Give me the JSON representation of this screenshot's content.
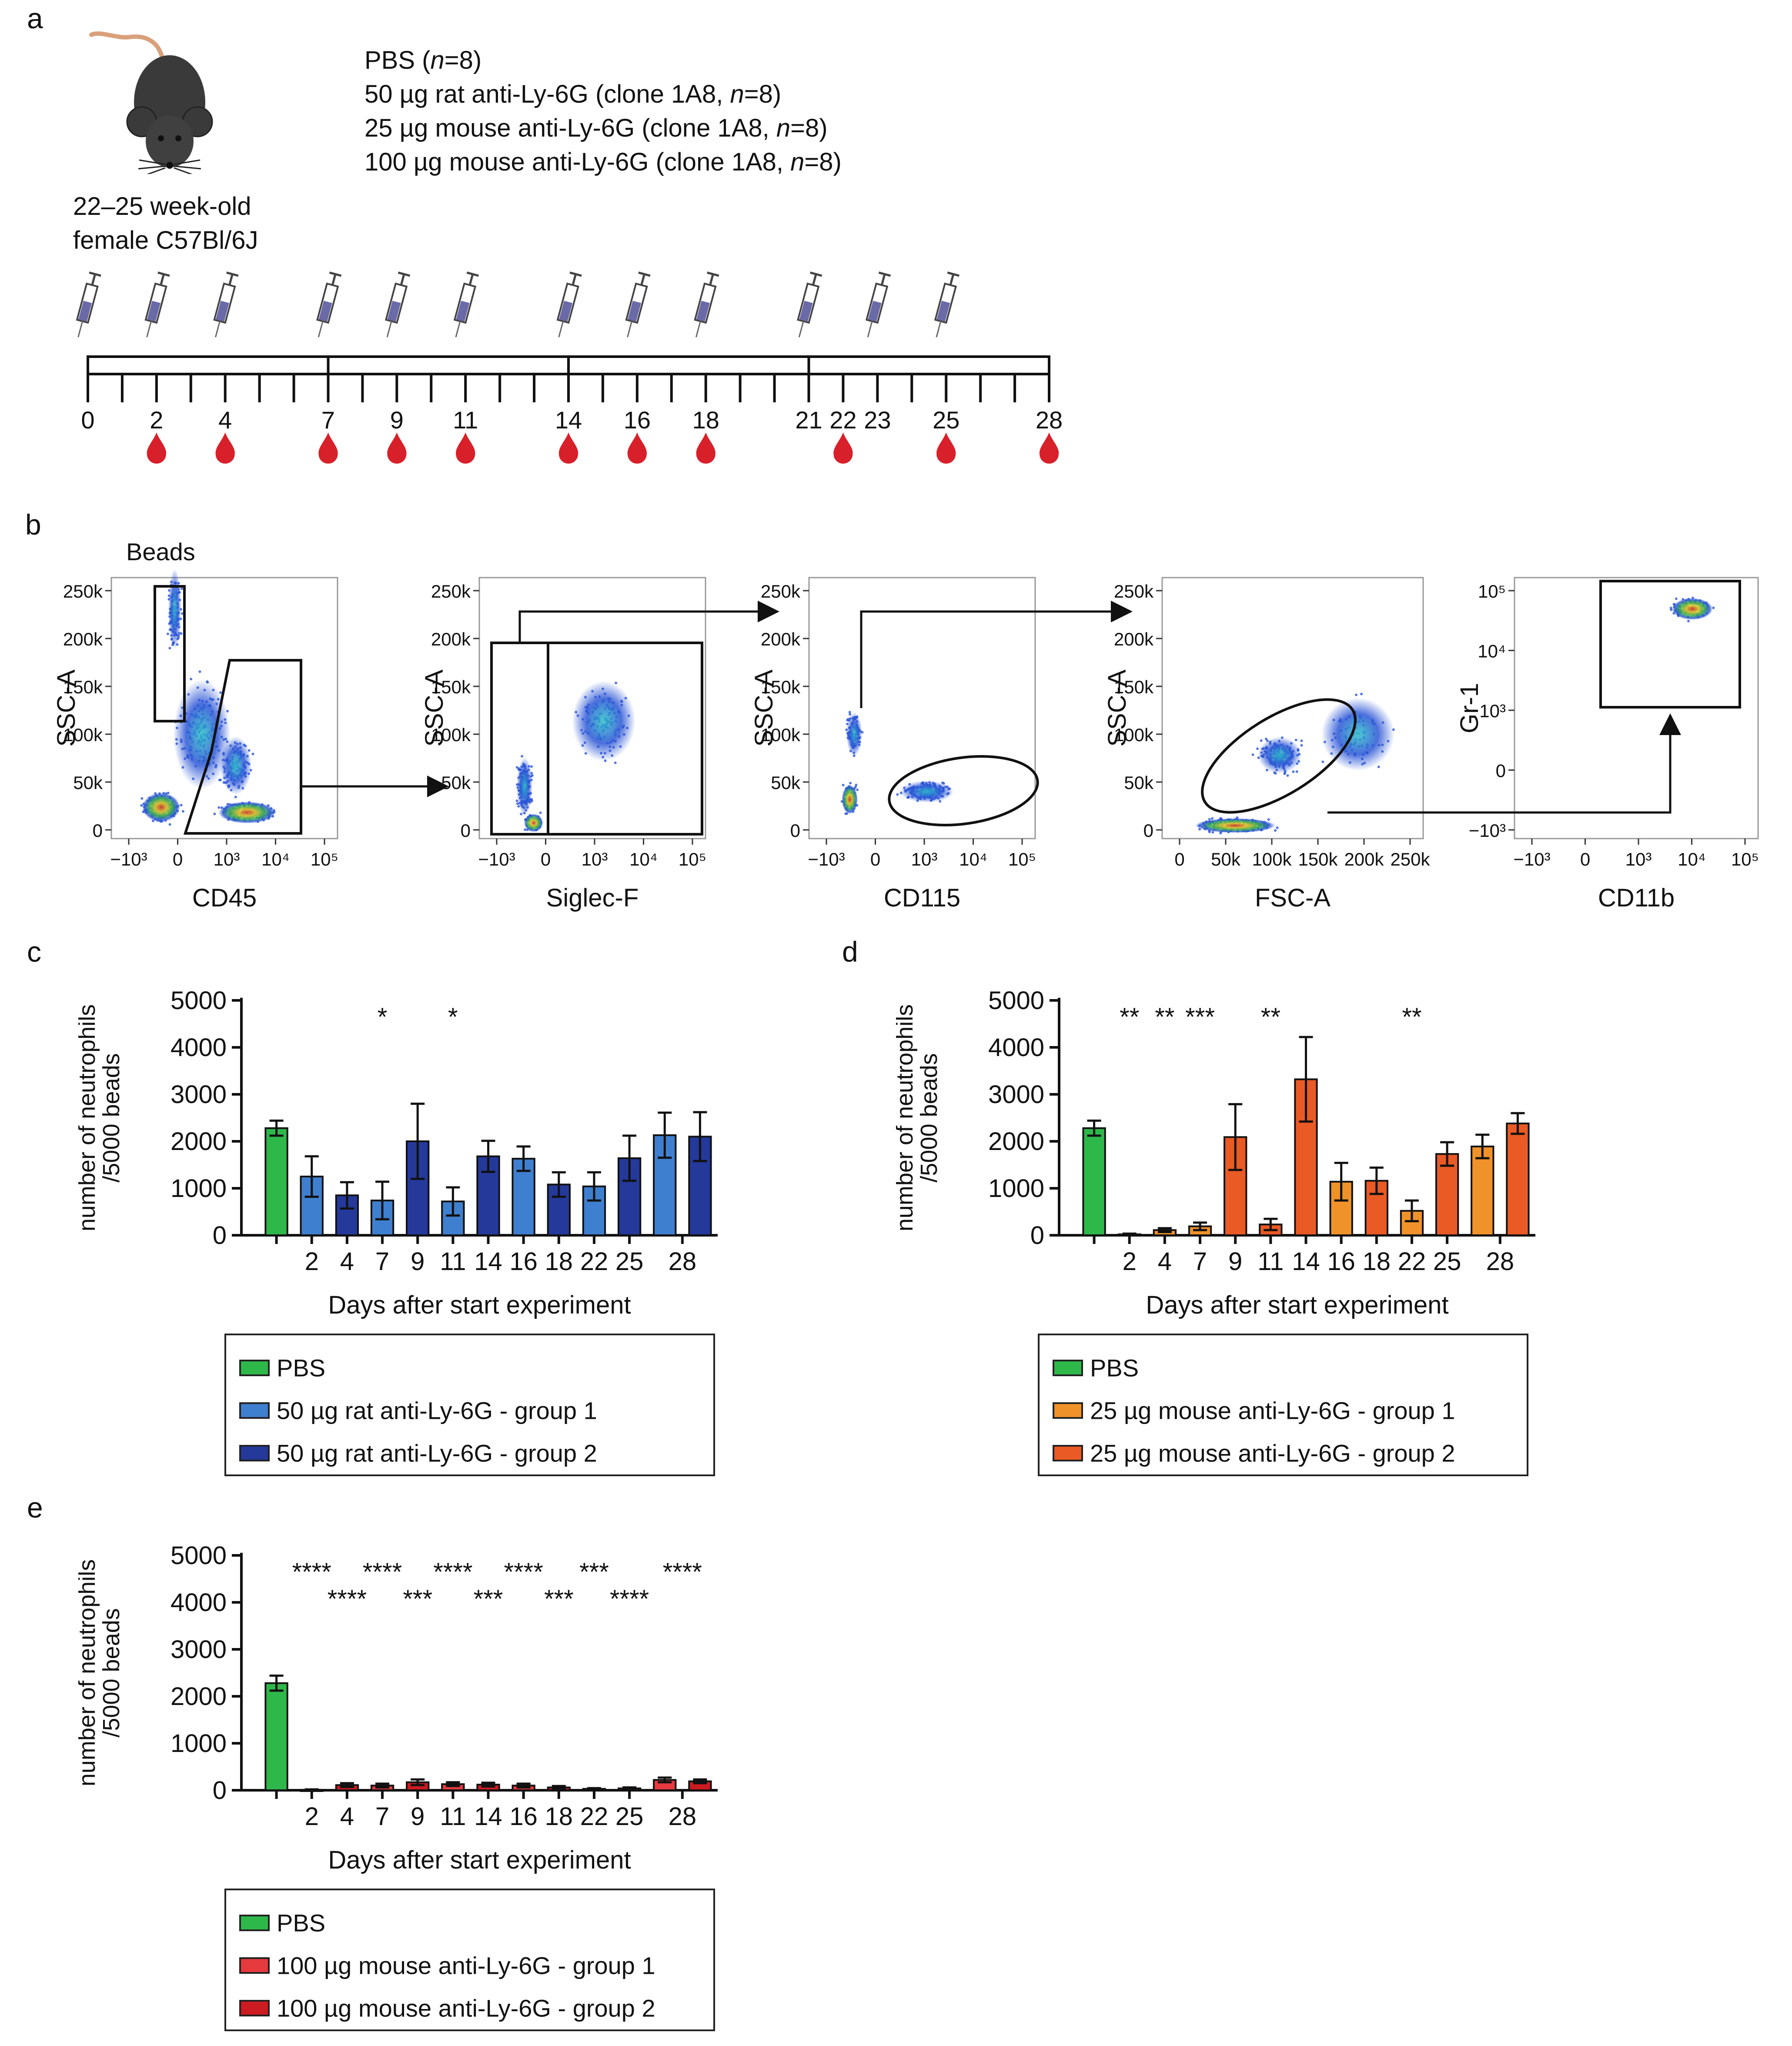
{
  "panel_a": {
    "letter": "a",
    "groups": [
      [
        "PBS (",
        "n",
        "=8)"
      ],
      [
        "50 µg rat anti-Ly-6G (clone 1A8, ",
        "n",
        "=8)"
      ],
      [
        "25 µg mouse anti-Ly-6G (clone 1A8, ",
        "n",
        "=8)"
      ],
      [
        "100 µg mouse anti-Ly-6G (clone 1A8, ",
        "n",
        "=8)"
      ]
    ],
    "mouse_label": [
      "22–25 week-old",
      "female C57Bl/6J"
    ],
    "timeline": {
      "range": [
        0,
        28
      ],
      "day_labels": [
        0,
        2,
        4,
        7,
        9,
        11,
        14,
        16,
        18,
        21,
        22,
        23,
        25,
        28
      ],
      "injection_days": [
        0,
        2,
        4,
        7,
        9,
        11,
        14,
        16,
        18,
        21,
        23,
        25
      ],
      "blood_days": [
        2,
        4,
        7,
        9,
        11,
        14,
        16,
        18,
        22,
        25,
        28
      ],
      "syringe_color": "#6a6aa8",
      "drop_color": "#d8202a"
    }
  },
  "panel_b": {
    "letter": "b",
    "beads_label": "Beads",
    "plots": [
      {
        "x_label": "CD45",
        "y_label": "SSC-A",
        "y_ticks": [
          "250k",
          "200k",
          "150k",
          "100k",
          "50k",
          "0"
        ],
        "x_ticks": [
          "−10³",
          "0",
          "10³",
          "10⁴",
          "10⁵"
        ]
      },
      {
        "x_label": "Siglec-F",
        "y_label": "SSC-A",
        "y_ticks": [
          "250k",
          "200k",
          "150k",
          "100k",
          "50k",
          "0"
        ],
        "x_ticks": [
          "−10³",
          "0",
          "10³",
          "10⁴",
          "10⁵"
        ]
      },
      {
        "x_label": "CD115",
        "y_label": "SSC-A",
        "y_ticks": [
          "250k",
          "200k",
          "150k",
          "100k",
          "50k",
          "0"
        ],
        "x_ticks": [
          "−10³",
          "0",
          "10³",
          "10⁴",
          "10⁵"
        ]
      },
      {
        "x_label": "FSC-A",
        "y_label": "SSC-A",
        "y_ticks": [
          "250k",
          "200k",
          "150k",
          "100k",
          "50k",
          "0"
        ],
        "x_ticks": [
          "0",
          "50k",
          "100k",
          "150k",
          "200k",
          "250k"
        ]
      },
      {
        "x_label": "CD11b",
        "y_label": "Gr-1",
        "y_ticks": [
          "10⁵",
          "10⁴",
          "10³",
          "0",
          "−10³"
        ],
        "x_ticks": [
          "−10³",
          "0",
          "10³",
          "10⁴",
          "10⁵"
        ]
      }
    ]
  },
  "chart_data": [
    {
      "panel": "c",
      "type": "bar",
      "ylabel": [
        "number of neutrophils",
        "/5000 beads"
      ],
      "xlabel": "Days after start experiment",
      "ylim": [
        0,
        5000
      ],
      "yticks": [
        0,
        1000,
        2000,
        3000,
        4000,
        5000
      ],
      "categories": [
        "2",
        "4",
        "7",
        "9",
        "11",
        "14",
        "16",
        "18",
        "22",
        "25",
        "28"
      ],
      "pbs": {
        "value": 2280,
        "error": 160
      },
      "series": [
        {
          "name": "PBS",
          "color": "#2fb84a"
        },
        {
          "name": "50 µg rat anti-Ly-6G - group 1",
          "color": "#3f7fcf"
        },
        {
          "name": "50 µg rat anti-Ly-6G - group 2",
          "color": "#24399a"
        }
      ],
      "bars": [
        {
          "cat": "2",
          "group": 1,
          "value": 1250,
          "error": 430
        },
        {
          "cat": "4",
          "group": 2,
          "value": 850,
          "error": 280
        },
        {
          "cat": "7",
          "group": 1,
          "value": 740,
          "error": 400
        },
        {
          "cat": "9",
          "group": 2,
          "value": 2000,
          "error": 800
        },
        {
          "cat": "11",
          "group": 1,
          "value": 720,
          "error": 300
        },
        {
          "cat": "14",
          "group": 2,
          "value": 1680,
          "error": 330
        },
        {
          "cat": "16",
          "group": 1,
          "value": 1630,
          "error": 260
        },
        {
          "cat": "18",
          "group": 2,
          "value": 1080,
          "error": 260
        },
        {
          "cat": "22",
          "group": 1,
          "value": 1040,
          "error": 300
        },
        {
          "cat": "25",
          "group": 2,
          "value": 1640,
          "error": 480
        },
        {
          "cat": "28a",
          "group": 1,
          "value": 2130,
          "error": 480
        },
        {
          "cat": "28b",
          "group": 2,
          "value": 2100,
          "error": 520
        }
      ],
      "significance": [
        {
          "cat": "7",
          "label": "*",
          "row": 0
        },
        {
          "cat": "11",
          "label": "*",
          "row": 0
        }
      ]
    },
    {
      "panel": "d",
      "type": "bar",
      "ylabel": [
        "number of neutrophils",
        "/5000 beads"
      ],
      "xlabel": "Days after start experiment",
      "ylim": [
        0,
        5000
      ],
      "yticks": [
        0,
        1000,
        2000,
        3000,
        4000,
        5000
      ],
      "categories": [
        "2",
        "4",
        "7",
        "9",
        "11",
        "14",
        "16",
        "18",
        "22",
        "25",
        "28"
      ],
      "pbs": {
        "value": 2280,
        "error": 160
      },
      "series": [
        {
          "name": "PBS",
          "color": "#2fb84a"
        },
        {
          "name": "25 µg mouse anti-Ly-6G - group 1",
          "color": "#f0922a"
        },
        {
          "name": "25 µg mouse anti-Ly-6G - group 2",
          "color": "#ea5a24"
        }
      ],
      "bars": [
        {
          "cat": "2",
          "group": 1,
          "value": 20,
          "error": 15
        },
        {
          "cat": "4",
          "group": 1,
          "value": 110,
          "error": 40
        },
        {
          "cat": "7",
          "group": 1,
          "value": 190,
          "error": 80
        },
        {
          "cat": "9",
          "group": 2,
          "value": 2090,
          "error": 700
        },
        {
          "cat": "11",
          "group": 2,
          "value": 230,
          "error": 120
        },
        {
          "cat": "14",
          "group": 2,
          "value": 3320,
          "error": 900
        },
        {
          "cat": "16",
          "group": 1,
          "value": 1140,
          "error": 400
        },
        {
          "cat": "18",
          "group": 2,
          "value": 1160,
          "error": 280
        },
        {
          "cat": "22",
          "group": 1,
          "value": 520,
          "error": 220
        },
        {
          "cat": "25",
          "group": 2,
          "value": 1730,
          "error": 250
        },
        {
          "cat": "28a",
          "group": 1,
          "value": 1890,
          "error": 250
        },
        {
          "cat": "28b",
          "group": 2,
          "value": 2380,
          "error": 220
        }
      ],
      "significance": [
        {
          "cat": "2",
          "label": "**",
          "row": 0
        },
        {
          "cat": "4",
          "label": "**",
          "row": 0
        },
        {
          "cat": "7",
          "label": "***",
          "row": 0
        },
        {
          "cat": "11",
          "label": "**",
          "row": 0
        },
        {
          "cat": "22",
          "label": "**",
          "row": 0
        }
      ]
    },
    {
      "panel": "e",
      "type": "bar",
      "ylabel": [
        "number of neutrophils",
        "/5000 beads"
      ],
      "xlabel": "Days after start experiment",
      "ylim": [
        0,
        5000
      ],
      "yticks": [
        0,
        1000,
        2000,
        3000,
        4000,
        5000
      ],
      "categories": [
        "2",
        "4",
        "7",
        "9",
        "11",
        "14",
        "16",
        "18",
        "22",
        "25",
        "28"
      ],
      "pbs": {
        "value": 2280,
        "error": 160
      },
      "series": [
        {
          "name": "PBS",
          "color": "#2fb84a"
        },
        {
          "name": "100 µg mouse anti-Ly-6G - group 1",
          "color": "#e63a3e"
        },
        {
          "name": "100 µg mouse anti-Ly-6G - group 2",
          "color": "#cc1b21"
        }
      ],
      "bars": [
        {
          "cat": "2",
          "group": 1,
          "value": 10,
          "error": 8
        },
        {
          "cat": "4",
          "group": 2,
          "value": 110,
          "error": 40
        },
        {
          "cat": "7",
          "group": 1,
          "value": 100,
          "error": 40
        },
        {
          "cat": "9",
          "group": 2,
          "value": 170,
          "error": 60
        },
        {
          "cat": "11",
          "group": 1,
          "value": 130,
          "error": 40
        },
        {
          "cat": "14",
          "group": 2,
          "value": 120,
          "error": 40
        },
        {
          "cat": "16",
          "group": 1,
          "value": 100,
          "error": 40
        },
        {
          "cat": "18",
          "group": 2,
          "value": 60,
          "error": 30
        },
        {
          "cat": "22",
          "group": 1,
          "value": 30,
          "error": 15
        },
        {
          "cat": "25",
          "group": 2,
          "value": 40,
          "error": 20
        },
        {
          "cat": "28a",
          "group": 1,
          "value": 220,
          "error": 50
        },
        {
          "cat": "28b",
          "group": 2,
          "value": 190,
          "error": 40
        }
      ],
      "significance": [
        {
          "cat": "2",
          "label": "****",
          "row": 0
        },
        {
          "cat": "4",
          "label": "****",
          "row": 1
        },
        {
          "cat": "7",
          "label": "****",
          "row": 0
        },
        {
          "cat": "9",
          "label": "***",
          "row": 1
        },
        {
          "cat": "11",
          "label": "****",
          "row": 0
        },
        {
          "cat": "14",
          "label": "***",
          "row": 1
        },
        {
          "cat": "16",
          "label": "****",
          "row": 0
        },
        {
          "cat": "18",
          "label": "***",
          "row": 1
        },
        {
          "cat": "22",
          "label": "***",
          "row": 0
        },
        {
          "cat": "25",
          "label": "****",
          "row": 1
        },
        {
          "cat": "28",
          "label": "****",
          "row": 0
        }
      ]
    }
  ]
}
